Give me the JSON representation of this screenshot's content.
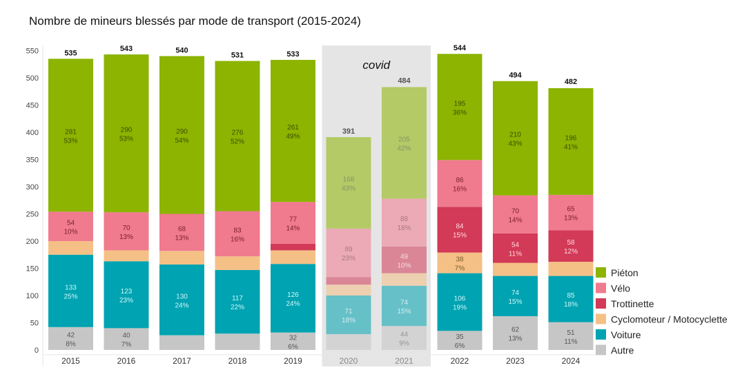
{
  "chart_data": {
    "type": "bar",
    "stacked": true,
    "title": "Nombre de mineurs blessés par mode de transport (2015-2024)",
    "xlabel": "",
    "ylabel": "",
    "ylim": [
      0,
      550
    ],
    "yticks": [
      0,
      50,
      100,
      150,
      200,
      250,
      300,
      350,
      400,
      450,
      500,
      550
    ],
    "grid": false,
    "legend_position": "bottom-right",
    "categories": [
      "2015",
      "2016",
      "2017",
      "2018",
      "2019",
      "2020",
      "2021",
      "2022",
      "2023",
      "2024"
    ],
    "totals": [
      535,
      543,
      540,
      531,
      533,
      391,
      484,
      544,
      494,
      482
    ],
    "shaded_categories": [
      "2020",
      "2021"
    ],
    "annotation": "covid",
    "series": [
      {
        "name": "Autre",
        "color": "#c6c6c6",
        "text_color": "#555555",
        "values": [
          42,
          40,
          27,
          30,
          32,
          29,
          44,
          35,
          62,
          51
        ],
        "labels": [
          "42",
          "40",
          null,
          null,
          "32",
          null,
          "44",
          "35",
          "62",
          "51"
        ],
        "percents": [
          "8%",
          "7%",
          null,
          null,
          "6%",
          null,
          "9%",
          "6%",
          "13%",
          "11%"
        ]
      },
      {
        "name": "Voiture",
        "color": "#00a3b1",
        "text_color": "#cdf7fb",
        "values": [
          133,
          123,
          130,
          117,
          126,
          71,
          74,
          106,
          74,
          85
        ],
        "labels": [
          "133",
          "123",
          "130",
          "117",
          "126",
          "71",
          "74",
          "106",
          "74",
          "85"
        ],
        "percents": [
          "25%",
          "23%",
          "24%",
          "22%",
          "24%",
          "18%",
          "15%",
          "19%",
          "15%",
          "18%"
        ]
      },
      {
        "name": "Cyclomoteur / Motocyclette",
        "color": "#f5c086",
        "text_color": "#7a5a2a",
        "values": [
          25,
          20,
          25,
          25,
          25,
          20,
          23,
          38,
          24,
          26
        ],
        "labels": [
          null,
          null,
          null,
          null,
          null,
          null,
          null,
          "38",
          null,
          null
        ],
        "percents": [
          null,
          null,
          null,
          null,
          null,
          null,
          null,
          "7%",
          null,
          null
        ]
      },
      {
        "name": "Trottinette",
        "color": "#d23a57",
        "text_color": "#ffd9e0",
        "values": [
          0,
          0,
          0,
          0,
          12,
          14,
          49,
          84,
          54,
          58
        ],
        "labels": [
          null,
          null,
          null,
          null,
          null,
          null,
          "49",
          "84",
          "54",
          "58"
        ],
        "percents": [
          null,
          null,
          null,
          null,
          null,
          null,
          "10%",
          "15%",
          "11%",
          "12%"
        ]
      },
      {
        "name": "Vélo",
        "color": "#f07a8e",
        "text_color": "#7a1f2e",
        "values": [
          54,
          70,
          68,
          83,
          77,
          89,
          88,
          86,
          70,
          65
        ],
        "labels": [
          "54",
          "70",
          "68",
          "83",
          "77",
          "89",
          "88",
          "86",
          "70",
          "65"
        ],
        "percents": [
          "10%",
          "13%",
          "13%",
          "16%",
          "14%",
          "23%",
          "18%",
          "16%",
          "14%",
          "13%"
        ]
      },
      {
        "name": "Piéton",
        "color": "#8cb400",
        "text_color": "#3d4d00",
        "values": [
          281,
          290,
          290,
          276,
          261,
          168,
          205,
          195,
          210,
          196
        ],
        "labels": [
          "281",
          "290",
          "290",
          "276",
          "261",
          "168",
          "205",
          "195",
          "210",
          "196"
        ],
        "percents": [
          "53%",
          "53%",
          "54%",
          "52%",
          "49%",
          "43%",
          "42%",
          "36%",
          "43%",
          "41%"
        ]
      }
    ],
    "legend_order": [
      "Piéton",
      "Vélo",
      "Trottinette",
      "Cyclomoteur / Motocyclette",
      "Voiture",
      "Autre"
    ]
  }
}
